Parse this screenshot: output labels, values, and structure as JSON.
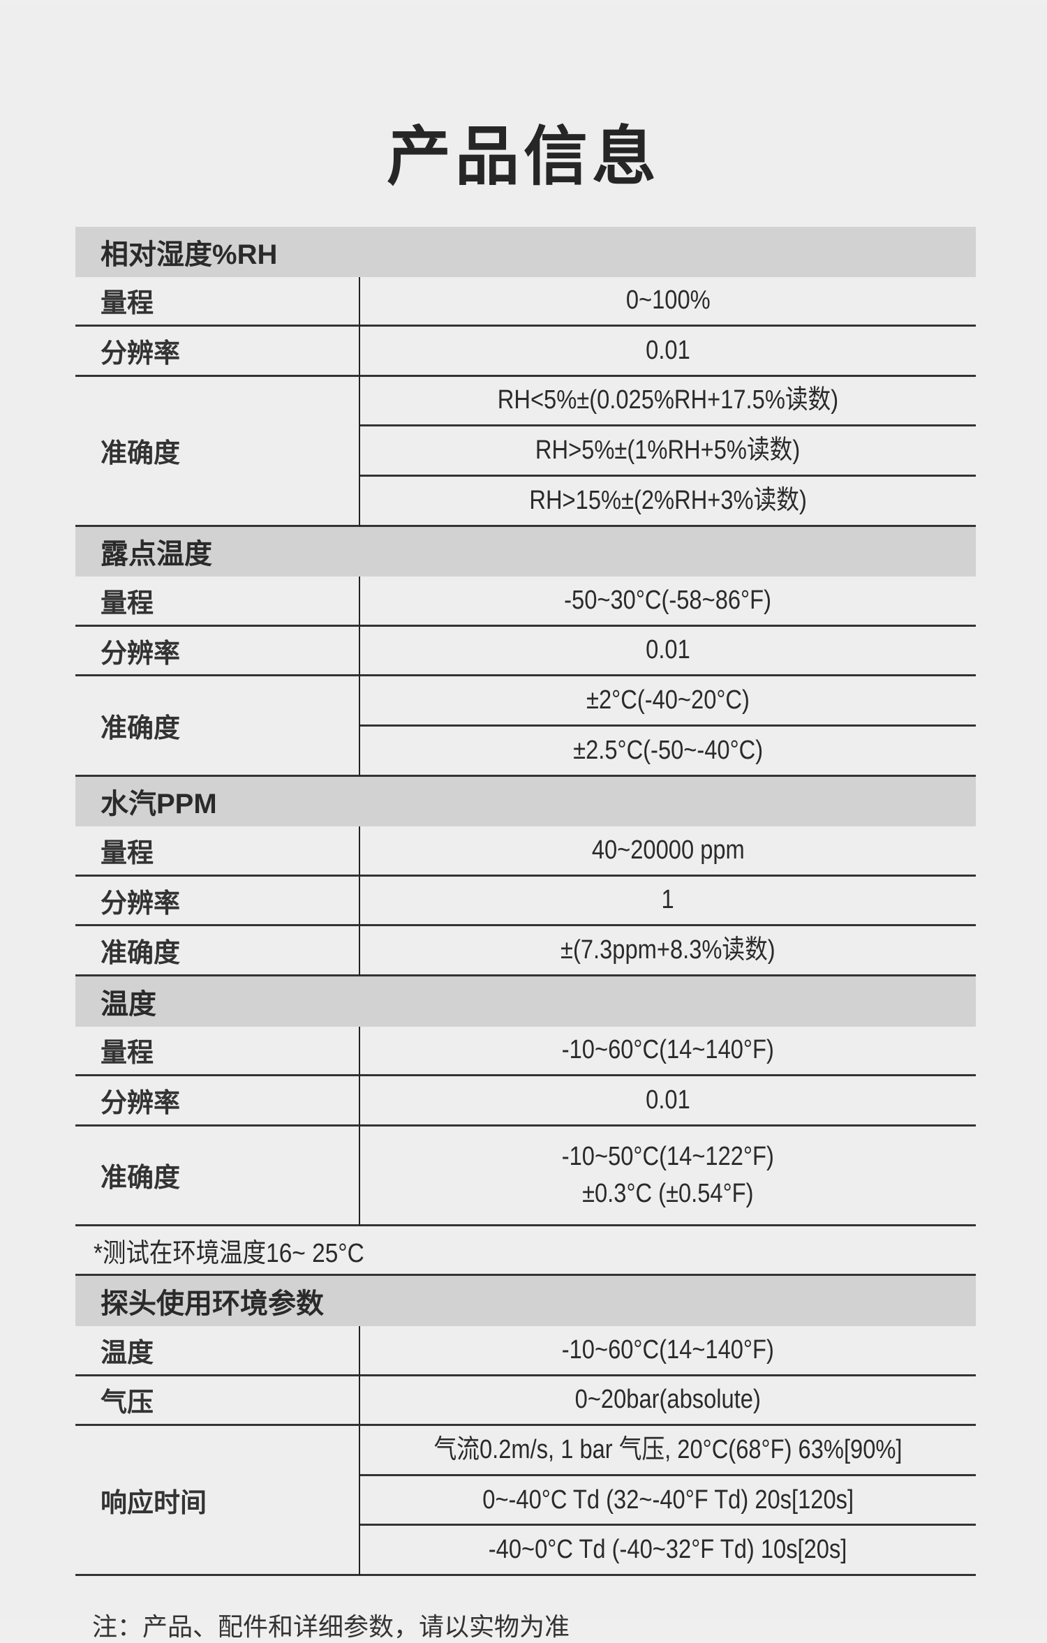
{
  "title": "产品信息",
  "sections": [
    {
      "heading": "相对湿度%RH",
      "rows": [
        {
          "label": "量程",
          "values": [
            "0~100%"
          ]
        },
        {
          "label": "分辨率",
          "values": [
            "0.01"
          ]
        },
        {
          "label": "准确度",
          "values": [
            "RH<5%±(0.025%RH+17.5%读数)",
            "RH>5%±(1%RH+5%读数)",
            "RH>15%±(2%RH+3%读数)"
          ]
        }
      ]
    },
    {
      "heading": "露点温度",
      "rows": [
        {
          "label": "量程",
          "values": [
            "-50~30°C(-58~86°F)"
          ]
        },
        {
          "label": "分辨率",
          "values": [
            "0.01"
          ]
        },
        {
          "label": "准确度",
          "values": [
            "±2°C(-40~20°C)",
            "±2.5°C(-50~-40°C)"
          ]
        }
      ]
    },
    {
      "heading": "水汽PPM",
      "rows": [
        {
          "label": "量程",
          "values": [
            "40~20000 ppm"
          ]
        },
        {
          "label": "分辨率",
          "values": [
            "1"
          ]
        },
        {
          "label": "准确度",
          "values": [
            "±(7.3ppm+8.3%读数)"
          ]
        }
      ]
    },
    {
      "heading": "温度",
      "rows": [
        {
          "label": "量程",
          "values": [
            "-10~60°C(14~140°F)"
          ]
        },
        {
          "label": "分辨率",
          "values": [
            "0.01"
          ]
        },
        {
          "label": "准确度",
          "multiline": true,
          "values": [
            "-10~50°C(14~122°F)\n±0.3°C (±0.54°F)"
          ]
        }
      ]
    },
    {
      "note": "*测试在环境温度16~ 25°C"
    },
    {
      "heading": "探头使用环境参数",
      "rows": [
        {
          "label": "温度",
          "values": [
            "-10~60°C(14~140°F)"
          ]
        },
        {
          "label": "气压",
          "values": [
            "0~20bar(absolute)"
          ]
        },
        {
          "label": "响应时间",
          "values": [
            "气流0.2m/s, 1 bar 气压, 20°C(68°F) 63%[90%]",
            "0~-40°C Td (32~-40°F Td) 20s[120s]",
            "-40~0°C Td (-40~32°F Td) 10s[20s]"
          ]
        }
      ]
    }
  ],
  "footer_note": "注：产品、配件和详细参数，请以实物为准"
}
